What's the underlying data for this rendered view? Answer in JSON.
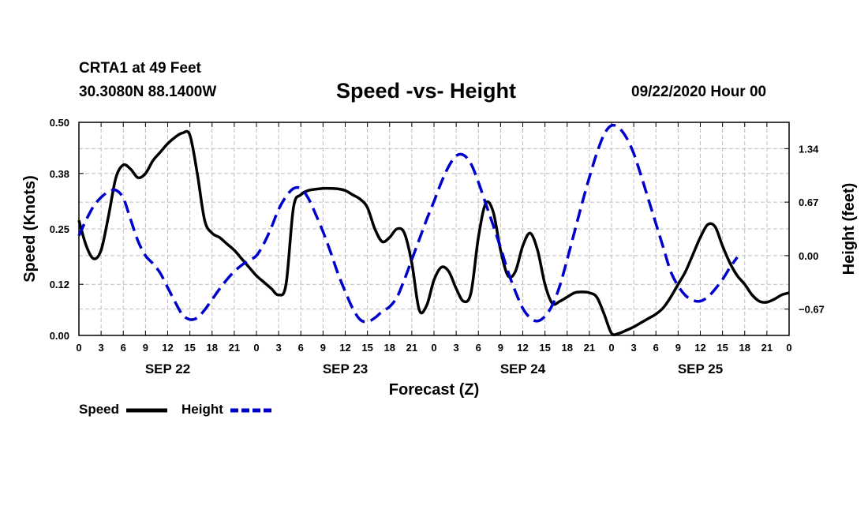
{
  "header": {
    "station": "CRTA1 at 49 Feet",
    "coords": "30.3080N 88.1400W",
    "title": "Speed -vs- Height",
    "run_time": "09/22/2020 Hour 00"
  },
  "legend": {
    "speed_label": "Speed",
    "height_label": "Height"
  },
  "colors": {
    "speed": "#000000",
    "height": "#0000cc",
    "grid": "#bdbdbd"
  },
  "chart_data": {
    "type": "line",
    "title": "Speed -vs- Height",
    "xlabel": "Forecast (Z)",
    "ylabel_left": "Speed (Knots)",
    "ylabel_right": "Height (feet)",
    "x_range_hours": [
      0,
      96
    ],
    "x_tick_hours": [
      0,
      3,
      6,
      9,
      12,
      15,
      18,
      21,
      24,
      27,
      30,
      33,
      36,
      39,
      42,
      45,
      48,
      51,
      54,
      57,
      60,
      63,
      66,
      69,
      72,
      75,
      78,
      81,
      84,
      87,
      90,
      93,
      96
    ],
    "x_tick_labels": [
      "0",
      "3",
      "6",
      "9",
      "12",
      "15",
      "18",
      "21",
      "0",
      "3",
      "6",
      "9",
      "12",
      "15",
      "18",
      "21",
      "0",
      "3",
      "6",
      "9",
      "12",
      "15",
      "18",
      "21",
      "0",
      "3",
      "6",
      "9",
      "12",
      "15",
      "18",
      "21",
      "0"
    ],
    "day_labels": [
      {
        "label": "SEP 22",
        "hour": 12
      },
      {
        "label": "SEP 23",
        "hour": 36
      },
      {
        "label": "SEP 24",
        "hour": 60
      },
      {
        "label": "SEP 25",
        "hour": 84
      }
    ],
    "ylim_left": [
      0,
      0.5
    ],
    "yticks_left": [
      0.0,
      0.12,
      0.25,
      0.38,
      0.5
    ],
    "ytick_labels_left": [
      "0.00",
      "0.12",
      "0.25",
      "0.38",
      "0.50"
    ],
    "ylim_right": [
      -1.0,
      1.67
    ],
    "yticks_right": [
      -0.67,
      0.0,
      0.67,
      1.34
    ],
    "ytick_labels_right": [
      "−0.67",
      "0.00",
      "0.67",
      "1.34"
    ],
    "grid": true,
    "series": [
      {
        "name": "Speed",
        "axis": "left",
        "style": "solid",
        "points": [
          [
            0,
            0.27
          ],
          [
            1,
            0.21
          ],
          [
            2,
            0.18
          ],
          [
            3,
            0.2
          ],
          [
            4,
            0.28
          ],
          [
            5,
            0.37
          ],
          [
            6,
            0.4
          ],
          [
            7,
            0.39
          ],
          [
            8,
            0.37
          ],
          [
            9,
            0.38
          ],
          [
            10,
            0.41
          ],
          [
            11,
            0.43
          ],
          [
            12,
            0.45
          ],
          [
            13,
            0.465
          ],
          [
            14,
            0.475
          ],
          [
            15,
            0.47
          ],
          [
            16,
            0.38
          ],
          [
            17,
            0.27
          ],
          [
            18,
            0.24
          ],
          [
            19,
            0.23
          ],
          [
            20,
            0.215
          ],
          [
            21,
            0.2
          ],
          [
            22,
            0.18
          ],
          [
            23,
            0.16
          ],
          [
            24,
            0.14
          ],
          [
            25,
            0.125
          ],
          [
            26,
            0.11
          ],
          [
            27,
            0.095
          ],
          [
            28,
            0.12
          ],
          [
            29,
            0.3
          ],
          [
            30,
            0.33
          ],
          [
            31,
            0.34
          ],
          [
            32,
            0.343
          ],
          [
            33,
            0.345
          ],
          [
            34,
            0.345
          ],
          [
            35,
            0.344
          ],
          [
            36,
            0.34
          ],
          [
            37,
            0.33
          ],
          [
            38,
            0.32
          ],
          [
            39,
            0.3
          ],
          [
            40,
            0.25
          ],
          [
            41,
            0.22
          ],
          [
            42,
            0.23
          ],
          [
            43,
            0.25
          ],
          [
            44,
            0.24
          ],
          [
            45,
            0.17
          ],
          [
            46,
            0.06
          ],
          [
            47,
            0.07
          ],
          [
            48,
            0.13
          ],
          [
            49,
            0.16
          ],
          [
            50,
            0.15
          ],
          [
            51,
            0.11
          ],
          [
            52,
            0.08
          ],
          [
            53,
            0.1
          ],
          [
            54,
            0.23
          ],
          [
            55,
            0.31
          ],
          [
            56,
            0.29
          ],
          [
            57,
            0.2
          ],
          [
            58,
            0.14
          ],
          [
            59,
            0.15
          ],
          [
            60,
            0.21
          ],
          [
            61,
            0.24
          ],
          [
            62,
            0.2
          ],
          [
            63,
            0.12
          ],
          [
            64,
            0.075
          ],
          [
            65,
            0.08
          ],
          [
            66,
            0.09
          ],
          [
            67,
            0.1
          ],
          [
            68,
            0.102
          ],
          [
            69,
            0.1
          ],
          [
            70,
            0.09
          ],
          [
            71,
            0.05
          ],
          [
            72,
            0.005
          ],
          [
            73,
            0.005
          ],
          [
            74,
            0.012
          ],
          [
            75,
            0.02
          ],
          [
            76,
            0.03
          ],
          [
            77,
            0.04
          ],
          [
            78,
            0.05
          ],
          [
            79,
            0.065
          ],
          [
            80,
            0.09
          ],
          [
            81,
            0.12
          ],
          [
            82,
            0.15
          ],
          [
            83,
            0.19
          ],
          [
            84,
            0.23
          ],
          [
            85,
            0.26
          ],
          [
            86,
            0.255
          ],
          [
            87,
            0.21
          ],
          [
            88,
            0.17
          ],
          [
            89,
            0.14
          ],
          [
            90,
            0.12
          ],
          [
            91,
            0.095
          ],
          [
            92,
            0.08
          ],
          [
            93,
            0.078
          ],
          [
            94,
            0.085
          ],
          [
            95,
            0.095
          ],
          [
            96,
            0.1
          ]
        ]
      },
      {
        "name": "Height",
        "axis": "right",
        "style": "dashed",
        "points": [
          [
            0,
            0.25
          ],
          [
            1,
            0.45
          ],
          [
            2,
            0.62
          ],
          [
            3,
            0.73
          ],
          [
            4,
            0.8
          ],
          [
            5,
            0.82
          ],
          [
            6,
            0.72
          ],
          [
            7,
            0.45
          ],
          [
            8,
            0.18
          ],
          [
            9,
            0.0
          ],
          [
            10,
            -0.1
          ],
          [
            11,
            -0.22
          ],
          [
            12,
            -0.4
          ],
          [
            13,
            -0.58
          ],
          [
            14,
            -0.74
          ],
          [
            15,
            -0.8
          ],
          [
            16,
            -0.78
          ],
          [
            17,
            -0.68
          ],
          [
            18,
            -0.55
          ],
          [
            19,
            -0.42
          ],
          [
            20,
            -0.3
          ],
          [
            21,
            -0.2
          ],
          [
            22,
            -0.12
          ],
          [
            23,
            -0.06
          ],
          [
            24,
            0.0
          ],
          [
            25,
            0.15
          ],
          [
            26,
            0.35
          ],
          [
            27,
            0.58
          ],
          [
            28,
            0.74
          ],
          [
            29,
            0.84
          ],
          [
            30,
            0.84
          ],
          [
            31,
            0.72
          ],
          [
            32,
            0.52
          ],
          [
            33,
            0.3
          ],
          [
            34,
            0.05
          ],
          [
            35,
            -0.22
          ],
          [
            36,
            -0.45
          ],
          [
            37,
            -0.66
          ],
          [
            38,
            -0.8
          ],
          [
            39,
            -0.83
          ],
          [
            40,
            -0.78
          ],
          [
            41,
            -0.7
          ],
          [
            42,
            -0.64
          ],
          [
            43,
            -0.52
          ],
          [
            44,
            -0.3
          ],
          [
            45,
            -0.05
          ],
          [
            46,
            0.2
          ],
          [
            47,
            0.45
          ],
          [
            48,
            0.68
          ],
          [
            49,
            0.92
          ],
          [
            50,
            1.12
          ],
          [
            51,
            1.25
          ],
          [
            52,
            1.26
          ],
          [
            53,
            1.15
          ],
          [
            54,
            0.92
          ],
          [
            55,
            0.65
          ],
          [
            56,
            0.38
          ],
          [
            57,
            0.1
          ],
          [
            58,
            -0.2
          ],
          [
            59,
            -0.45
          ],
          [
            60,
            -0.66
          ],
          [
            61,
            -0.78
          ],
          [
            62,
            -0.82
          ],
          [
            63,
            -0.76
          ],
          [
            64,
            -0.62
          ],
          [
            65,
            -0.38
          ],
          [
            66,
            -0.05
          ],
          [
            67,
            0.3
          ],
          [
            68,
            0.65
          ],
          [
            69,
            0.98
          ],
          [
            70,
            1.28
          ],
          [
            71,
            1.52
          ],
          [
            72,
            1.63
          ],
          [
            73,
            1.6
          ],
          [
            74,
            1.48
          ],
          [
            75,
            1.28
          ],
          [
            76,
            1.0
          ],
          [
            77,
            0.7
          ],
          [
            78,
            0.4
          ],
          [
            79,
            0.1
          ],
          [
            80,
            -0.2
          ],
          [
            81,
            -0.38
          ],
          [
            82,
            -0.5
          ],
          [
            83,
            -0.56
          ],
          [
            84,
            -0.57
          ],
          [
            85,
            -0.52
          ],
          [
            86,
            -0.42
          ],
          [
            87,
            -0.3
          ],
          [
            88,
            -0.15
          ],
          [
            89,
            -0.02
          ]
        ]
      }
    ]
  }
}
